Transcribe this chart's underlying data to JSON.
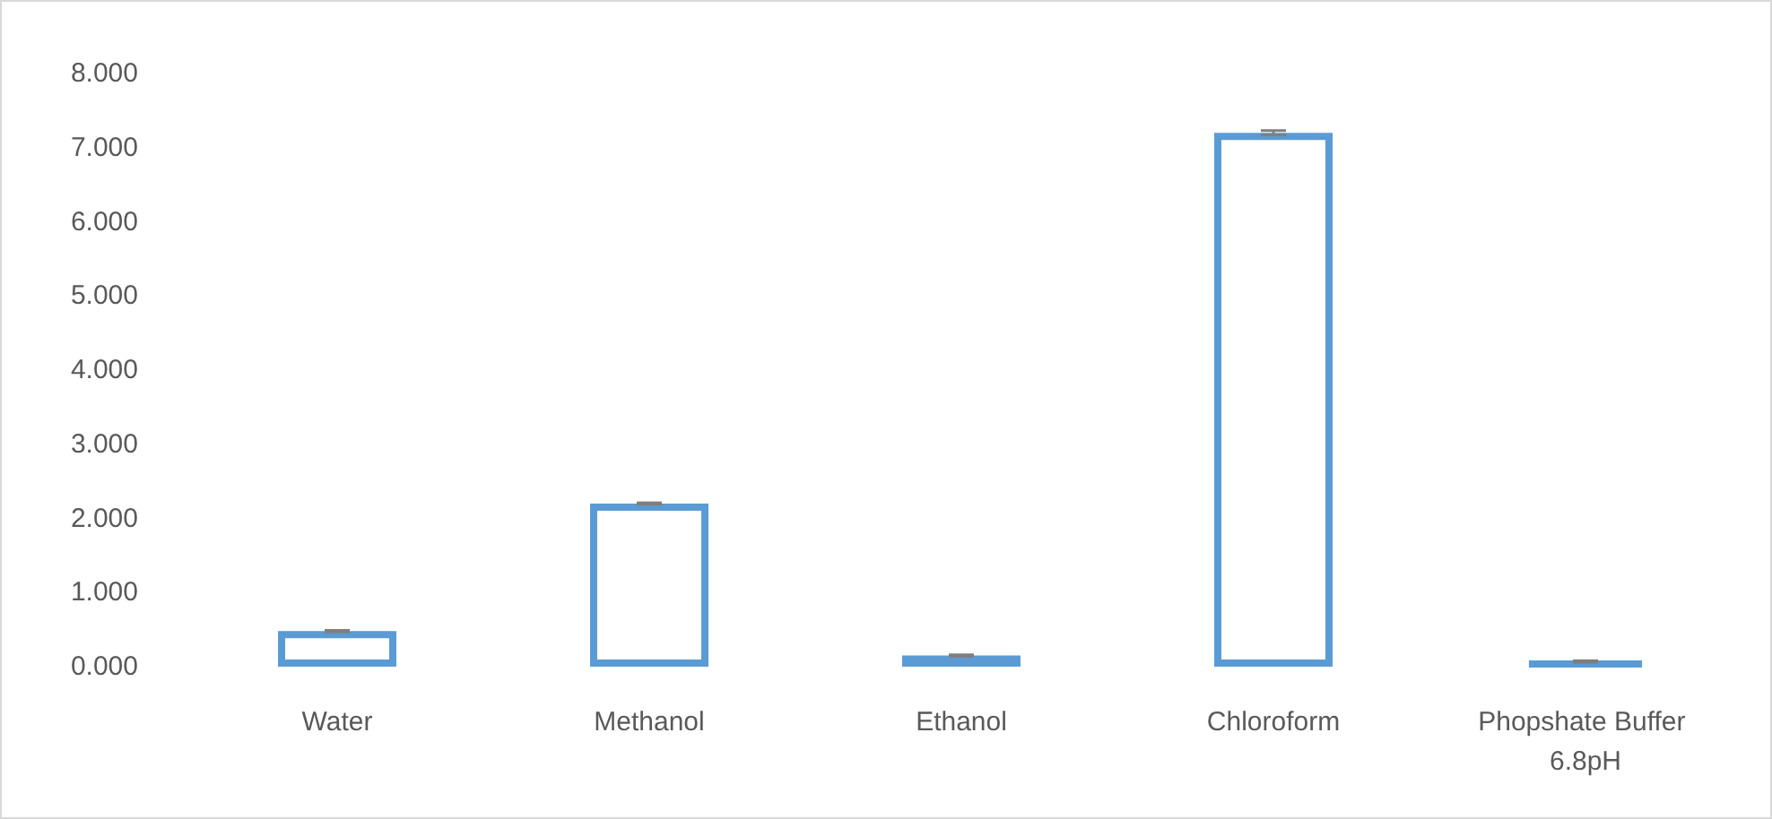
{
  "chart_data": {
    "type": "bar",
    "categories": [
      "Water",
      "Methanol",
      "Ethanol",
      "Chloroform",
      "Phopshate Buffer 6.8pH"
    ],
    "values": [
      0.48,
      2.2,
      0.15,
      7.2,
      0.07
    ],
    "errors": [
      0.01,
      0.01,
      0.01,
      0.03,
      0.01
    ],
    "color": "#5b9bd5",
    "ylim": [
      0,
      8
    ],
    "yticks": [
      {
        "value": 0,
        "label": "0.000"
      },
      {
        "value": 1,
        "label": "1.000"
      },
      {
        "value": 2,
        "label": "2.000"
      },
      {
        "value": 3,
        "label": "3.000"
      },
      {
        "value": 4,
        "label": "4.000"
      },
      {
        "value": 5,
        "label": "5.000"
      },
      {
        "value": 6,
        "label": "6.000"
      },
      {
        "value": 7,
        "label": "7.000"
      },
      {
        "value": 8,
        "label": "8.000"
      }
    ],
    "grid": false
  }
}
